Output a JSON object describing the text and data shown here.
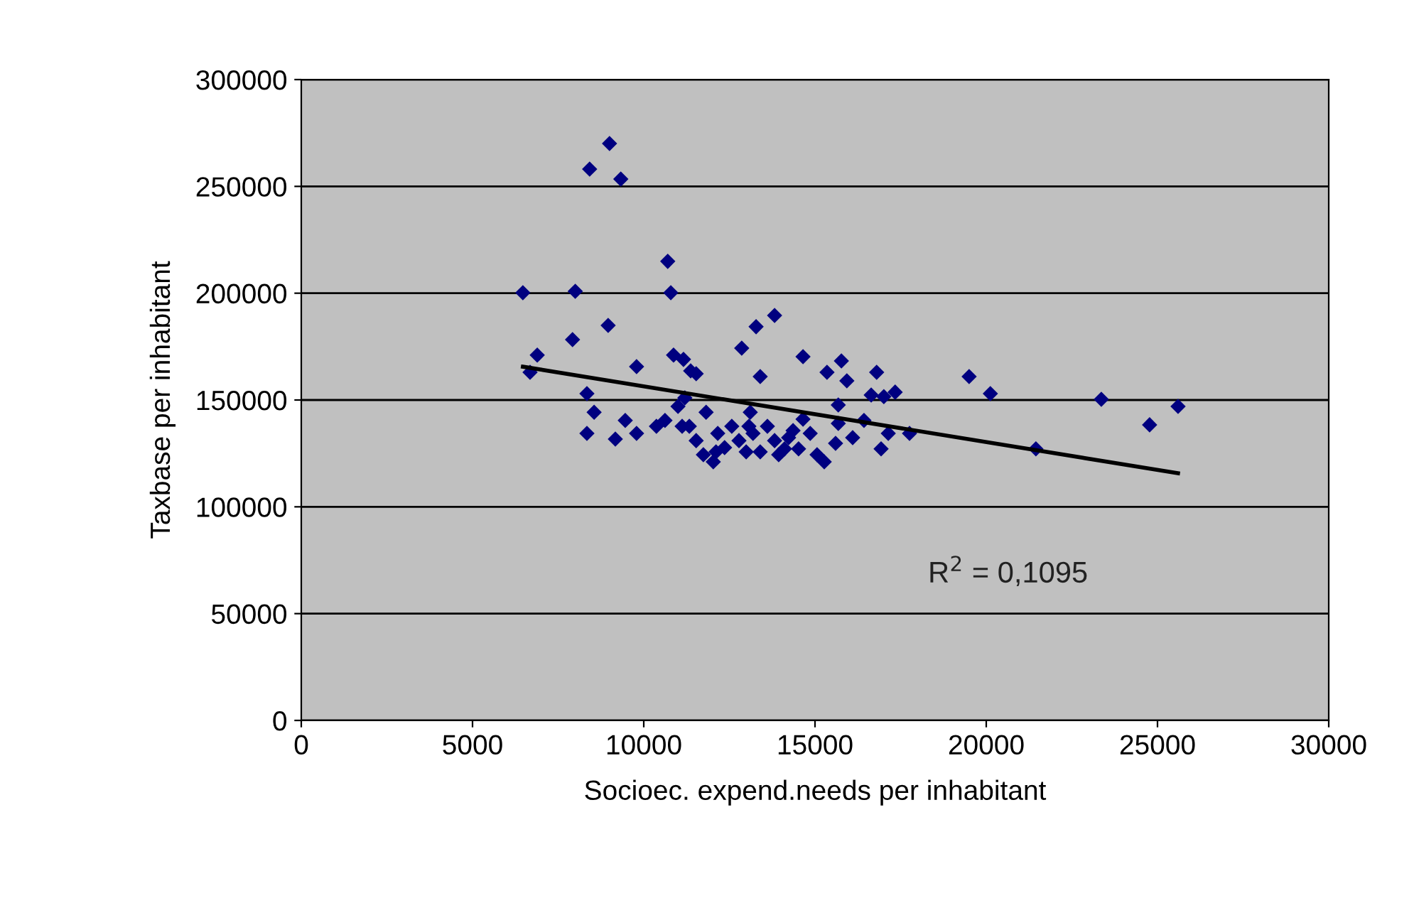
{
  "chart_data": {
    "type": "scatter",
    "xlabel": "Socioec. expend.needs per inhabitant",
    "ylabel": "Taxbase per inhabitant",
    "xlim": [
      0,
      30000
    ],
    "xticks": [
      0,
      5000,
      10000,
      15000,
      20000,
      25000,
      30000
    ],
    "ylim": [
      0,
      300000
    ],
    "yticks": [
      0,
      50000,
      100000,
      150000,
      200000,
      250000,
      300000
    ],
    "grid": "y",
    "marker": "diamond",
    "legend": false,
    "series": [
      {
        "color": "#000080",
        "x": [
          6470,
          6680,
          6890,
          7920,
          8000,
          8340,
          8550,
          8340,
          8420,
          9000,
          9330,
          8960,
          9170,
          9460,
          9790,
          9790,
          10700,
          10790,
          10870,
          10370,
          10620,
          11000,
          11160,
          11370,
          11530,
          11200,
          11820,
          11330,
          11530,
          11740,
          12160,
          12360,
          12030,
          12570,
          12780,
          12990,
          13190,
          12860,
          13280,
          13820,
          13400,
          13110,
          13610,
          13820,
          14110,
          14360,
          14650,
          14650,
          14860,
          15060,
          15270,
          15350,
          15680,
          15770,
          15600,
          15930,
          15680,
          16100,
          16430,
          16800,
          16640,
          17010,
          17340,
          17140,
          16930,
          17760,
          19500,
          20120,
          21450,
          23360,
          24770,
          25600,
          12110,
          13400,
          14230,
          13940,
          14520,
          11120,
          13070
        ],
        "values": [
          200200,
          163000,
          171000,
          178300,
          200900,
          153000,
          144300,
          134400,
          258100,
          270100,
          253400,
          184900,
          131700,
          140400,
          134400,
          165600,
          214900,
          200200,
          171000,
          137700,
          140400,
          147000,
          169000,
          163600,
          162300,
          151000,
          144300,
          137700,
          131000,
          124400,
          134400,
          127700,
          121100,
          137700,
          131000,
          125700,
          134400,
          174300,
          184300,
          189600,
          161000,
          144300,
          137700,
          131000,
          127100,
          135700,
          141000,
          170300,
          134400,
          124400,
          121100,
          163000,
          139000,
          168300,
          129700,
          159000,
          147700,
          132400,
          140400,
          163000,
          152300,
          151600,
          153700,
          134400,
          127100,
          134400,
          161000,
          153000,
          127100,
          150300,
          138400,
          147000,
          125700,
          125700,
          132400,
          124400,
          127100,
          137700,
          137700
        ]
      },
      {
        "type": "line",
        "color": "#000000",
        "x": [
          6470,
          25600
        ],
        "values": [
          165600,
          115700
        ],
        "marker": "none",
        "line_style": "solid"
      }
    ],
    "annotations": [
      "R$^{2}$ = 0,1095"
    ]
  }
}
